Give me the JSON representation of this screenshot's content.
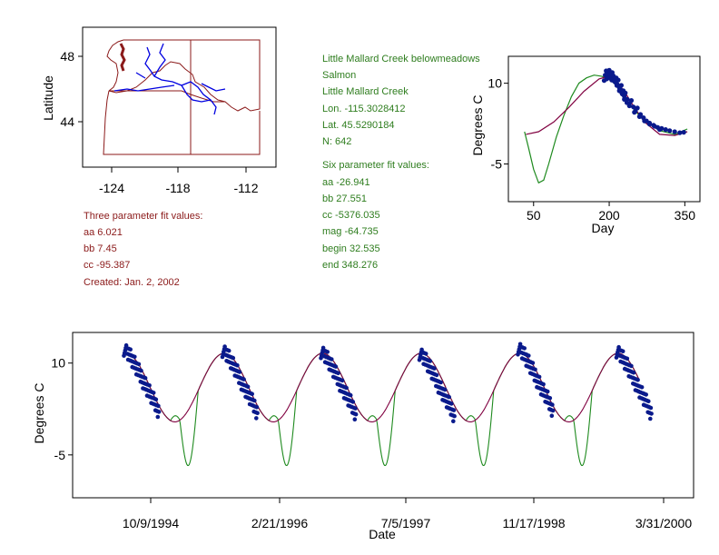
{
  "colors": {
    "red_text": "#8b1a1a",
    "green_text": "#2e7d1e",
    "model_three_param": "#800040",
    "model_six_param": "#1e8a1e",
    "observed_points": "#0a1a8c",
    "map_border": "#8b1a1a",
    "map_rivers": "#0000e0"
  },
  "site_info": {
    "site_name": "Little Mallard Creek belowmeadows",
    "basin": "Salmon",
    "stream": "Little Mallard Creek",
    "lon": "Lon. -115.3028412",
    "lat": "Lat. 45.5290184",
    "n": "N: 642"
  },
  "three_param": {
    "heading": "Three parameter fit values:",
    "aa": "aa 6.021",
    "bb": "bb 7.45",
    "cc": "cc -95.387",
    "created": "Created:   Jan. 2, 2002"
  },
  "six_param": {
    "heading": "Six parameter fit values:",
    "aa": "aa -26.941",
    "bb": "bb 27.551",
    "cc": "cc -5376.035",
    "mag": "mag -64.735",
    "begin": "begin 32.535",
    "end": "end 348.276"
  },
  "map": {
    "ylabel": "Latitude",
    "yticks": [
      "48",
      "44"
    ],
    "xticks": [
      "-124",
      "-118",
      "-112"
    ]
  },
  "chart_data": [
    {
      "type": "scatter",
      "panel": "day-of-year",
      "xlabel": "Day",
      "ylabel": "Degrees C",
      "xticks": [
        "50",
        "200",
        "350"
      ],
      "yticks": [
        "10",
        "-5"
      ],
      "xlim": [
        0,
        380
      ],
      "ylim": [
        -12,
        15
      ],
      "series": [
        {
          "kind": "line",
          "x": [
            35,
            60,
            90,
            120,
            150,
            180,
            195,
            210,
            230,
            250,
            270,
            300,
            330,
            355
          ],
          "y": [
            0.5,
            1.0,
            2.8,
            5.5,
            8.5,
            10.8,
            11.2,
            10.8,
            8.5,
            5.5,
            2.8,
            0.5,
            0.3,
            1.0
          ]
        },
        {
          "kind": "line",
          "x": [
            32,
            40,
            50,
            60,
            70,
            80,
            95,
            110,
            125,
            140,
            155,
            170,
            185,
            200,
            215,
            230,
            250,
            270,
            300,
            330,
            355
          ],
          "y": [
            1.0,
            -2.0,
            -6.0,
            -8.5,
            -8.0,
            -5.0,
            0.0,
            4.0,
            7.5,
            10.0,
            11.0,
            11.5,
            11.3,
            10.8,
            9.5,
            7.5,
            5.0,
            3.0,
            1.2,
            0.5,
            1.5
          ]
        },
        {
          "kind": "points",
          "x": [
            190,
            192,
            194,
            196,
            198,
            200,
            202,
            204,
            206,
            208,
            210,
            212,
            214,
            216,
            218,
            220,
            222,
            224,
            226,
            228,
            230,
            232,
            236,
            240,
            244,
            248,
            252,
            256,
            262,
            268,
            274,
            280,
            288,
            296,
            304,
            312,
            320,
            330,
            340,
            348,
            195,
            200,
            205,
            210,
            215,
            220,
            225,
            230,
            235,
            240,
            250,
            260,
            270,
            280,
            290,
            300
          ],
          "y": [
            10.5,
            11.5,
            12.3,
            12.0,
            11.6,
            12.4,
            11.8,
            11.2,
            12.0,
            11.4,
            10.8,
            10.2,
            11.0,
            9.8,
            10.6,
            9.2,
            8.8,
            9.6,
            8.0,
            8.6,
            7.6,
            8.2,
            7.0,
            6.2,
            6.8,
            5.6,
            4.8,
            5.4,
            4.2,
            3.6,
            3.0,
            2.6,
            2.2,
            1.8,
            1.6,
            1.4,
            1.2,
            1.0,
            0.8,
            0.9,
            10.8,
            11.0,
            10.6,
            10.4,
            9.6,
            8.6,
            8.2,
            7.0,
            6.4,
            5.8,
            4.6,
            3.8,
            3.0,
            2.4,
            2.0,
            1.4
          ]
        }
      ]
    },
    {
      "type": "scatter",
      "panel": "time-series",
      "xlabel": "Date",
      "ylabel": "Degrees C",
      "xticks": [
        "10/9/1994",
        "2/21/1996",
        "7/5/1997",
        "11/17/1998",
        "3/31/2000"
      ],
      "yticks": [
        "10",
        "-5"
      ],
      "ylim": [
        -12,
        15
      ],
      "seasons": [
        {
          "year": "1994",
          "peak": 12.0
        },
        {
          "year": "1995",
          "peak": 11.8
        },
        {
          "year": "1996",
          "peak": 11.6
        },
        {
          "year": "1997",
          "peak": 11.3
        },
        {
          "year": "1998",
          "peak": 12.2
        },
        {
          "year": "1999",
          "peak": 11.7
        }
      ]
    }
  ]
}
